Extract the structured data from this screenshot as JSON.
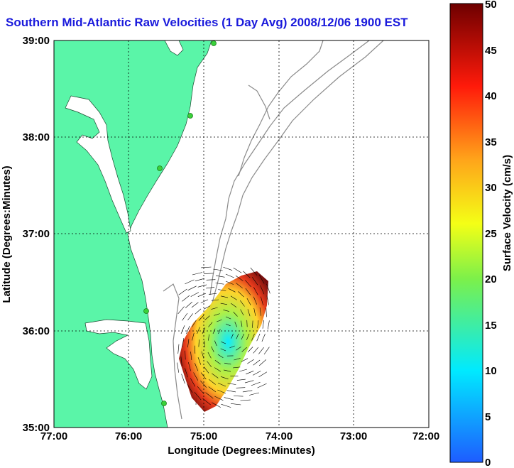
{
  "title": "Southern Mid-Atlantic Raw Velocities (1 Day Avg) 2008/12/06 1900 EST",
  "x_axis": {
    "label": "Longitude (Degrees:Minutes)",
    "ticks": [
      "77:00",
      "76:00",
      "75:00",
      "74:00",
      "73:00",
      "72:00"
    ]
  },
  "y_axis": {
    "label": "Latitude (Degrees:Minutes)",
    "ticks": [
      "39:00",
      "38:00",
      "37:00",
      "36:00",
      "35:00"
    ]
  },
  "colorbar": {
    "label": "Surface Velocity (cm/s)",
    "ticks": [
      "50",
      "45",
      "40",
      "35",
      "30",
      "25",
      "20",
      "15",
      "10",
      "5",
      "0"
    ],
    "range": [
      0,
      50
    ]
  },
  "extent": {
    "lon": [
      -77,
      -72
    ],
    "lat": [
      35,
      39
    ]
  },
  "colors": {
    "land": "#5af5a8",
    "title": "#1a1adc",
    "contour": "#8a8a8a",
    "station": "#3ad13a"
  }
}
